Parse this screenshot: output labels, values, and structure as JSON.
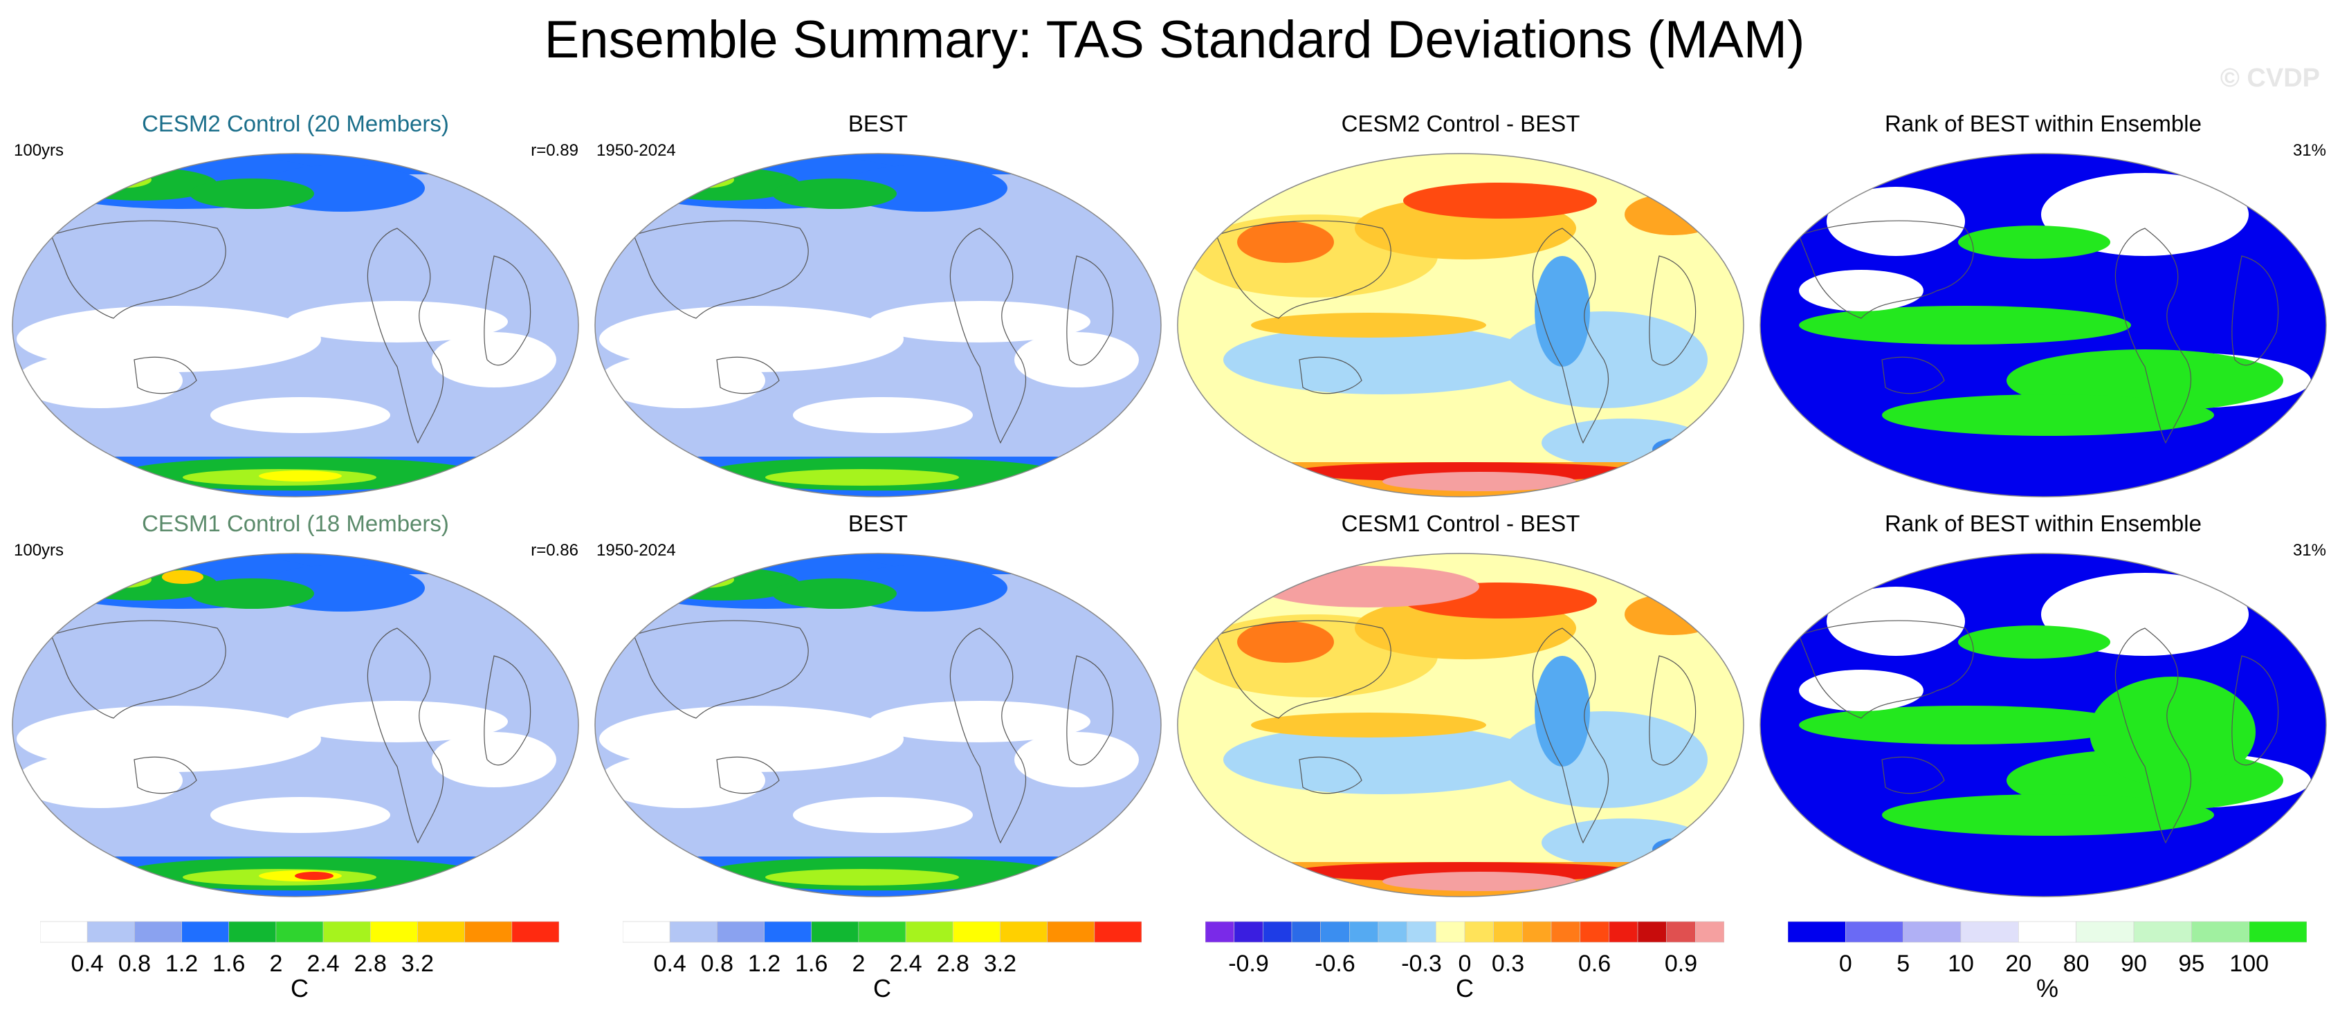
{
  "title": "Ensemble Summary: TAS Standard Deviations (MAM)",
  "watermark": "© CVDP",
  "panels": [
    {
      "title": "CESM2 Control (20 Members)",
      "title_color": "#1a6e8a",
      "left": "100yrs",
      "right": "r=0.89",
      "kind": "sd"
    },
    {
      "title": "BEST",
      "title_color": "#000000",
      "left": "1950-2024",
      "right": "",
      "kind": "sd"
    },
    {
      "title": "CESM2 Control - BEST",
      "title_color": "#000000",
      "left": "",
      "right": "",
      "kind": "diff"
    },
    {
      "title": "Rank of BEST within Ensemble",
      "title_color": "#000000",
      "left": "",
      "right": "31%",
      "kind": "rank"
    },
    {
      "title": "CESM1 Control (18 Members)",
      "title_color": "#5a8a6a",
      "left": "100yrs",
      "right": "r=0.86",
      "kind": "sd"
    },
    {
      "title": "BEST",
      "title_color": "#000000",
      "left": "1950-2024",
      "right": "",
      "kind": "sd"
    },
    {
      "title": "CESM1 Control - BEST",
      "title_color": "#000000",
      "left": "",
      "right": "",
      "kind": "diff"
    },
    {
      "title": "Rank of BEST within Ensemble",
      "title_color": "#000000",
      "left": "",
      "right": "31%",
      "kind": "rank"
    }
  ],
  "colorbars": [
    {
      "unit": "C",
      "colors": [
        "#ffffff",
        "#b3c6f5",
        "#8aa2f0",
        "#1f6fff",
        "#11b832",
        "#2fd42f",
        "#a6f31d",
        "#ffff00",
        "#ffd000",
        "#ff9000",
        "#ff2a10"
      ],
      "labels": [
        "0.4",
        "0.8",
        "1.2",
        "1.6",
        "2",
        "2.4",
        "2.8",
        "3.2"
      ],
      "label_after_box": [
        1,
        2,
        3,
        4,
        5,
        6,
        7,
        8
      ]
    },
    {
      "unit": "C",
      "colors": [
        "#ffffff",
        "#b3c6f5",
        "#8aa2f0",
        "#1f6fff",
        "#11b832",
        "#2fd42f",
        "#a6f31d",
        "#ffff00",
        "#ffd000",
        "#ff9000",
        "#ff2a10"
      ],
      "labels": [
        "0.4",
        "0.8",
        "1.2",
        "1.6",
        "2",
        "2.4",
        "2.8",
        "3.2"
      ],
      "label_after_box": [
        1,
        2,
        3,
        4,
        5,
        6,
        7,
        8
      ]
    },
    {
      "unit": "C",
      "colors": [
        "#7a2ae8",
        "#3a1ee0",
        "#1e3ce6",
        "#2b6be8",
        "#3b8ef0",
        "#55aaf2",
        "#7dc3f5",
        "#a8d8f8",
        "#ffffb0",
        "#ffe35a",
        "#ffc830",
        "#ffa520",
        "#ff7a18",
        "#ff4a10",
        "#ee1c10",
        "#c80c0c",
        "#e05050",
        "#f5a0a0"
      ],
      "labels": [
        "-0.9",
        "-0.6",
        "-0.3",
        "0",
        "0.3",
        "0.6",
        "0.9"
      ],
      "label_after_box": [
        2,
        5,
        8,
        9,
        11,
        14,
        17
      ],
      "label_pos": [
        1.5,
        4.5,
        7.5,
        9,
        10.5,
        13.5,
        16.5
      ]
    },
    {
      "unit": "%",
      "colors": [
        "#0000ee",
        "#6a6af5",
        "#b0b0f5",
        "#e0e0fa",
        "#ffffff",
        "#e8fce8",
        "#c8f7c8",
        "#a0f0a0",
        "#23e81e"
      ],
      "labels": [
        "0",
        "5",
        "10",
        "20",
        "80",
        "90",
        "95",
        "100"
      ],
      "label_pos": [
        1,
        2,
        3,
        4,
        5,
        6,
        7,
        8
      ]
    }
  ]
}
